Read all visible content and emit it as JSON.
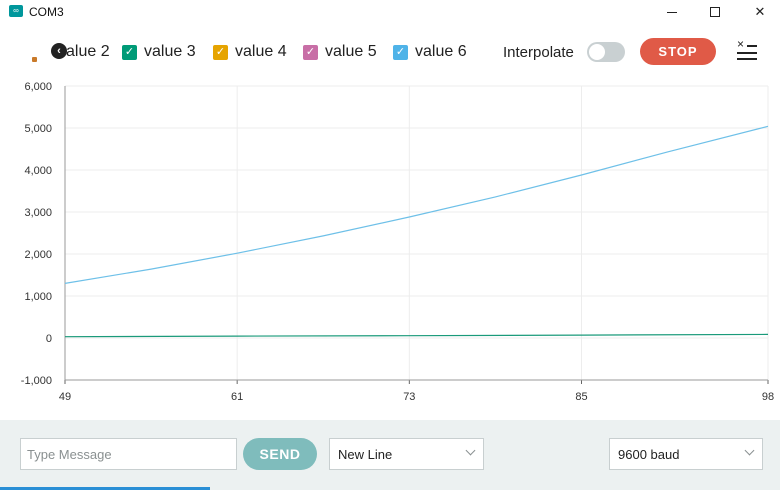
{
  "window": {
    "title": "COM3",
    "icon": "arduino-infinity-icon",
    "min_glyph": "",
    "max_glyph": "",
    "close_glyph": "✕"
  },
  "toolbar": {
    "scroll_left_glyph": "‹",
    "legend": [
      {
        "label": "value 2",
        "checked": null,
        "color": null,
        "partial": true
      },
      {
        "label": "value 3",
        "checked": true,
        "color": "#009b77"
      },
      {
        "label": "value 4",
        "checked": true,
        "color": "#e6a400"
      },
      {
        "label": "value 5",
        "checked": true,
        "color": "#c86ea6"
      },
      {
        "label": "value 6",
        "checked": true,
        "color": "#4fb3e8"
      }
    ],
    "check_glyph": "✓",
    "interpolate_label": "Interpolate",
    "interpolate_on": false,
    "stop_label": "STOP",
    "menu_icon": "clear-list-icon",
    "menu_x_glyph": "×"
  },
  "chart_data": {
    "type": "line",
    "x_range": [
      49,
      98
    ],
    "y_range": [
      -1000,
      6000
    ],
    "x_ticks": [
      49,
      61,
      73,
      85,
      98
    ],
    "y_ticks": [
      -1000,
      0,
      1000,
      2000,
      3000,
      4000,
      5000,
      6000
    ],
    "y_tick_labels": [
      "-1,000",
      "0",
      "1,000",
      "2,000",
      "3,000",
      "4,000",
      "5,000",
      "6,000"
    ],
    "x_tick_labels": [
      "49",
      "61",
      "73",
      "85",
      "98"
    ],
    "grid": true,
    "series": [
      {
        "name": "value 6",
        "color": "#6ec0e8",
        "x": [
          49,
          55,
          61,
          67,
          73,
          79,
          85,
          91,
          98
        ],
        "y": [
          1300,
          1640,
          2020,
          2430,
          2880,
          3360,
          3880,
          4430,
          5040
        ]
      },
      {
        "name": "value 3",
        "color": "#1a9a7a",
        "x": [
          49,
          61,
          73,
          85,
          98
        ],
        "y": [
          30,
          45,
          55,
          70,
          85
        ]
      }
    ]
  },
  "bottom": {
    "message_placeholder": "Type Message",
    "message_value": "",
    "send_label": "SEND",
    "line_ending": "New Line",
    "baud": "9600 baud"
  }
}
